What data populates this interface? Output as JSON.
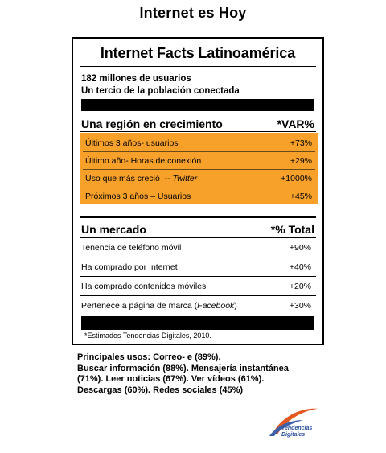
{
  "page_title": "Internet es Hoy",
  "panel": {
    "title": "Internet Facts Latinoamérica",
    "stats": [
      "182 millones de usuarios",
      "Un tercio de la población conectada"
    ]
  },
  "growth": {
    "heading": "Una región en crecimiento",
    "heading_right": "*VAR%",
    "rows": [
      {
        "label": "Últimos 3 años- usuarios",
        "value": "+73%"
      },
      {
        "label": "Último año- Horas de conexión",
        "value": "+29%"
      },
      {
        "label_prefix": "Uso que más creció  -- ",
        "label_italic": "Twitter",
        "value": "+1000%"
      },
      {
        "label": "Próximos 3 años – Usuarios",
        "value": "+45%"
      }
    ],
    "accent_color": "#f7a12b"
  },
  "market": {
    "heading": "Un mercado",
    "heading_right": "*% Total",
    "rows": [
      {
        "label": "Tenencia de teléfono móvil",
        "value": "+90%"
      },
      {
        "label": "Ha comprado por Internet",
        "value": "+40%"
      },
      {
        "label": "Ha comprado contenidos móviles",
        "value": "+20%"
      },
      {
        "label_prefix": "Pertenece a página de marca (",
        "label_italic": "Facebook",
        "label_suffix": ")",
        "value": "+30%"
      }
    ]
  },
  "footnote": "*Estimados Tendencias Digitales, 2010.",
  "usos": [
    "Principales usos: Correo- e  (89%).",
    "Buscar información (88%). Mensajería instantánea",
    "(71%). Leer noticias (67%). Ver vídeos (61%).",
    "Descargas (60%). Redes sociales (45%)"
  ],
  "logo": {
    "line1": "Tendencias",
    "line2": "Digitales"
  }
}
